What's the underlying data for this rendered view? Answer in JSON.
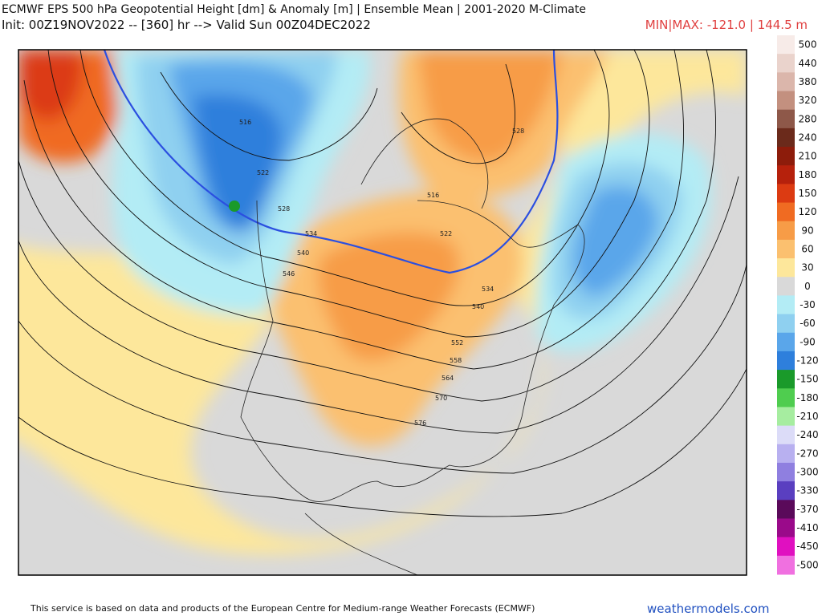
{
  "header": {
    "title": "ECMWF EPS 500 hPa Geopotential Height [dm] & Anomaly [m] | Ensemble Mean | 2001-2020 M-Climate",
    "subtitle": "Init: 00Z19NOV2022 -- [360] hr --> Valid Sun 00Z04DEC2022",
    "minmax": "MIN|MAX: -121.0 | 144.5 m"
  },
  "colorbar": {
    "labels": [
      500,
      440,
      380,
      320,
      280,
      240,
      210,
      180,
      150,
      120,
      90,
      60,
      30,
      0,
      -30,
      -60,
      -90,
      -120,
      -150,
      -180,
      -210,
      -240,
      -270,
      -300,
      -330,
      -370,
      -410,
      -450,
      -500
    ],
    "colors": [
      "#f7ebe8",
      "#ead3cc",
      "#dbb6ab",
      "#c3907f",
      "#8e5849",
      "#6b2a1b",
      "#8d1c0b",
      "#b6210c",
      "#dc3b12",
      "#f06b22",
      "#f79c47",
      "#fbc06f",
      "#fde79b",
      "#d9d9d9",
      "#b3ecf5",
      "#8fd0f0",
      "#5aa6ea",
      "#2e7fdc",
      "#1a9a2a",
      "#4fcd4f",
      "#a6eda0",
      "#dcdcf8",
      "#b8b0f0",
      "#8f7fe0",
      "#5a3fc0",
      "#5a0a5a",
      "#9a0a8a",
      "#e010c0",
      "#f070e0"
    ]
  },
  "map": {
    "contour_labels": [
      "516",
      "522",
      "528",
      "534",
      "540",
      "546",
      "552",
      "558",
      "564",
      "570",
      "576",
      "528",
      "516",
      "522",
      "534",
      "540"
    ]
  },
  "footer": {
    "credit": "This service is based on data and products of the European Centre for Medium-range Weather Forecasts (ECMWF)",
    "site": "weathermodels.com"
  }
}
